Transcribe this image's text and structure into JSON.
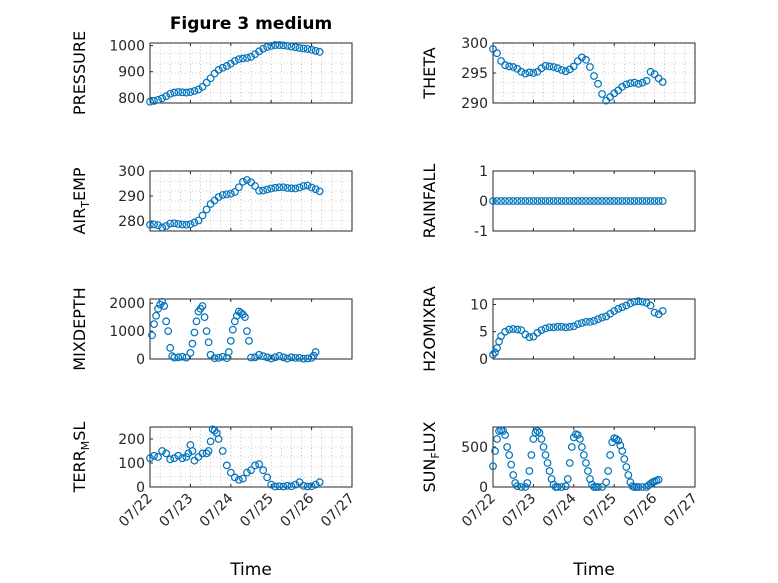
{
  "figure": {
    "title": "Figure 3 medium",
    "xlabel": "Time",
    "marker_color": "#0072BD",
    "x_ticks": [
      "07/22",
      "07/23",
      "07/24",
      "07/25",
      "07/26",
      "07/27"
    ]
  },
  "chart_data": [
    {
      "type": "scatter",
      "ylabel": "PRESSURE",
      "ylim": [
        780,
        1010
      ],
      "yticks": [
        800,
        900,
        1000
      ],
      "grid": true,
      "x": [
        22.0,
        22.1,
        22.2,
        22.3,
        22.4,
        22.5,
        22.6,
        22.7,
        22.8,
        22.9,
        23.0,
        23.1,
        23.2,
        23.3,
        23.4,
        23.5,
        23.6,
        23.7,
        23.8,
        23.9,
        24.0,
        24.1,
        24.2,
        24.3,
        24.4,
        24.5,
        24.6,
        24.7,
        24.8,
        24.9,
        25.0,
        25.1,
        25.2,
        25.3,
        25.4,
        25.5,
        25.6,
        25.7,
        25.8,
        25.9,
        26.0,
        26.1,
        26.2
      ],
      "y": [
        785,
        788,
        792,
        798,
        806,
        815,
        820,
        822,
        821,
        820,
        822,
        826,
        832,
        842,
        858,
        875,
        893,
        907,
        915,
        922,
        931,
        941,
        948,
        951,
        953,
        957,
        967,
        978,
        988,
        995,
        999,
        1002,
        1002,
        1001,
        999,
        996,
        994,
        991,
        989,
        987,
        984,
        980,
        976
      ]
    },
    {
      "type": "scatter",
      "ylabel": "THETA",
      "ylim": [
        290,
        300
      ],
      "yticks": [
        290,
        295,
        300
      ],
      "grid": true,
      "x": [
        22.0,
        22.1,
        22.2,
        22.3,
        22.4,
        22.5,
        22.6,
        22.7,
        22.8,
        22.9,
        23.0,
        23.1,
        23.2,
        23.3,
        23.4,
        23.5,
        23.6,
        23.7,
        23.8,
        23.9,
        24.0,
        24.1,
        24.2,
        24.3,
        24.4,
        24.5,
        24.6,
        24.7,
        24.8,
        24.9,
        25.0,
        25.1,
        25.2,
        25.3,
        25.4,
        25.5,
        25.6,
        25.7,
        25.8,
        25.9,
        26.0,
        26.1,
        26.2
      ],
      "y": [
        299.0,
        298.3,
        297.0,
        296.3,
        296.1,
        296.0,
        295.7,
        295.2,
        294.9,
        295.1,
        295.0,
        295.2,
        295.8,
        296.2,
        296.1,
        296.0,
        295.8,
        295.5,
        295.3,
        295.6,
        296.1,
        297.0,
        297.6,
        297.2,
        296.0,
        294.5,
        293.2,
        291.5,
        290.4,
        291.0,
        291.6,
        292.1,
        292.7,
        293.1,
        293.3,
        293.4,
        293.2,
        293.4,
        293.7,
        295.2,
        294.8,
        294.1,
        293.5
      ]
    },
    {
      "type": "scatter",
      "ylabel": "AIR_TEMP",
      "ylim": [
        276,
        300
      ],
      "yticks": [
        280,
        290,
        300
      ],
      "grid": true,
      "x": [
        22.0,
        22.1,
        22.2,
        22.3,
        22.4,
        22.5,
        22.6,
        22.7,
        22.8,
        22.9,
        23.0,
        23.1,
        23.2,
        23.3,
        23.4,
        23.5,
        23.6,
        23.7,
        23.8,
        23.9,
        24.0,
        24.1,
        24.2,
        24.3,
        24.4,
        24.5,
        24.6,
        24.7,
        24.8,
        24.9,
        25.0,
        25.1,
        25.2,
        25.3,
        25.4,
        25.5,
        25.6,
        25.7,
        25.8,
        25.9,
        26.0,
        26.1,
        26.2
      ],
      "y": [
        278.5,
        278.6,
        278.3,
        277.4,
        278.0,
        279.0,
        279.1,
        278.8,
        278.6,
        278.5,
        278.7,
        279.4,
        280.2,
        282.2,
        284.6,
        286.8,
        288.2,
        289.6,
        290.4,
        290.7,
        290.9,
        291.6,
        293.5,
        295.7,
        296.4,
        295.5,
        294.0,
        292.1,
        292.2,
        292.6,
        293.0,
        293.3,
        293.5,
        293.5,
        293.2,
        293.1,
        293.0,
        293.4,
        294.0,
        294.2,
        293.4,
        292.7,
        291.9
      ]
    },
    {
      "type": "scatter",
      "ylabel": "RAINFALL",
      "ylim": [
        -1,
        1
      ],
      "yticks": [
        -1,
        0,
        1
      ],
      "grid": false,
      "x": [
        22.0,
        22.1,
        22.2,
        22.3,
        22.4,
        22.5,
        22.6,
        22.7,
        22.8,
        22.9,
        23.0,
        23.1,
        23.2,
        23.3,
        23.4,
        23.5,
        23.6,
        23.7,
        23.8,
        23.9,
        24.0,
        24.1,
        24.2,
        24.3,
        24.4,
        24.5,
        24.6,
        24.7,
        24.8,
        24.9,
        25.0,
        25.1,
        25.2,
        25.3,
        25.4,
        25.5,
        25.6,
        25.7,
        25.8,
        25.9,
        26.0,
        26.1,
        26.2
      ],
      "y": [
        0,
        0,
        0,
        0,
        0,
        0,
        0,
        0,
        0,
        0,
        0,
        0,
        0,
        0,
        0,
        0,
        0,
        0,
        0,
        0,
        0,
        0,
        0,
        0,
        0,
        0,
        0,
        0,
        0,
        0,
        0,
        0,
        0,
        0,
        0,
        0,
        0,
        0,
        0,
        0,
        0,
        0,
        0
      ]
    },
    {
      "type": "scatter",
      "ylabel": "MIXDEPTH",
      "ylim": [
        0,
        2150
      ],
      "yticks": [
        0,
        1000,
        2000
      ],
      "grid": false,
      "x": [
        22.05,
        22.1,
        22.15,
        22.2,
        22.25,
        22.3,
        22.35,
        22.4,
        22.45,
        22.5,
        22.55,
        22.6,
        22.7,
        22.8,
        22.9,
        23.0,
        23.05,
        23.1,
        23.15,
        23.2,
        23.25,
        23.3,
        23.35,
        23.4,
        23.45,
        23.5,
        23.6,
        23.7,
        23.8,
        23.9,
        23.95,
        24.0,
        24.05,
        24.1,
        24.15,
        24.2,
        24.25,
        24.3,
        24.35,
        24.4,
        24.45,
        24.5,
        24.6,
        24.7,
        24.8,
        24.9,
        25.0,
        25.1,
        25.2,
        25.3,
        25.4,
        25.5,
        25.6,
        25.7,
        25.8,
        25.9,
        26.0,
        26.05,
        26.1
      ],
      "y": [
        850,
        1250,
        1550,
        1800,
        1950,
        2050,
        1900,
        1350,
        1000,
        400,
        100,
        50,
        60,
        80,
        50,
        220,
        550,
        950,
        1350,
        1700,
        1800,
        1900,
        1500,
        1000,
        600,
        150,
        30,
        40,
        80,
        30,
        250,
        650,
        1050,
        1350,
        1550,
        1700,
        1650,
        1600,
        1500,
        1000,
        650,
        50,
        60,
        150,
        100,
        60,
        20,
        60,
        110,
        60,
        20,
        60,
        40,
        40,
        10,
        20,
        40,
        120,
        250
      ]
    },
    {
      "type": "scatter",
      "ylabel": "H2OMIXRA",
      "ylim": [
        0,
        11
      ],
      "yticks": [
        0,
        5,
        10
      ],
      "grid": false,
      "x": [
        22.0,
        22.05,
        22.1,
        22.15,
        22.2,
        22.3,
        22.4,
        22.5,
        22.6,
        22.7,
        22.8,
        22.9,
        23.0,
        23.1,
        23.2,
        23.3,
        23.4,
        23.5,
        23.6,
        23.7,
        23.8,
        23.9,
        24.0,
        24.1,
        24.2,
        24.3,
        24.4,
        24.5,
        24.6,
        24.7,
        24.8,
        24.9,
        25.0,
        25.1,
        25.2,
        25.3,
        25.4,
        25.5,
        25.6,
        25.7,
        25.8,
        25.9,
        26.0,
        26.1,
        26.2
      ],
      "y": [
        0.8,
        1.2,
        2.0,
        3.2,
        4.2,
        5.0,
        5.4,
        5.5,
        5.4,
        5.3,
        4.5,
        4.0,
        4.1,
        4.8,
        5.3,
        5.6,
        5.8,
        5.8,
        5.9,
        5.9,
        5.8,
        5.9,
        6.0,
        6.4,
        6.6,
        6.8,
        6.8,
        7.0,
        7.3,
        7.6,
        7.8,
        8.3,
        8.8,
        9.2,
        9.5,
        9.8,
        10.2,
        10.5,
        10.6,
        10.5,
        10.3,
        9.8,
        8.5,
        8.2,
        8.8
      ]
    },
    {
      "type": "scatter",
      "ylabel": "TERR_MSL",
      "ylim": [
        0,
        250
      ],
      "yticks": [
        0,
        100,
        200
      ],
      "grid": true,
      "x": [
        22.0,
        22.1,
        22.2,
        22.3,
        22.4,
        22.5,
        22.6,
        22.7,
        22.8,
        22.9,
        22.95,
        23.0,
        23.05,
        23.1,
        23.2,
        23.3,
        23.4,
        23.45,
        23.5,
        23.55,
        23.6,
        23.65,
        23.7,
        23.8,
        23.9,
        24.0,
        24.1,
        24.2,
        24.3,
        24.4,
        24.5,
        24.6,
        24.7,
        24.8,
        24.9,
        25.0,
        25.1,
        25.2,
        25.3,
        25.4,
        25.5,
        25.6,
        25.7,
        25.8,
        25.9,
        26.0,
        26.1,
        26.2
      ],
      "y": [
        120,
        130,
        125,
        150,
        140,
        115,
        120,
        130,
        120,
        125,
        140,
        175,
        150,
        110,
        125,
        140,
        140,
        150,
        190,
        240,
        235,
        225,
        200,
        150,
        90,
        60,
        40,
        30,
        35,
        60,
        70,
        90,
        95,
        70,
        40,
        10,
        2,
        3,
        2,
        5,
        3,
        10,
        20,
        5,
        2,
        3,
        10,
        20
      ]
    },
    {
      "type": "scatter",
      "ylabel": "SUN_FLUX",
      "ylim": [
        0,
        750
      ],
      "yticks": [
        0,
        500
      ],
      "grid": false,
      "x": [
        22.0,
        22.05,
        22.1,
        22.15,
        22.2,
        22.25,
        22.3,
        22.35,
        22.4,
        22.45,
        22.5,
        22.55,
        22.6,
        22.7,
        22.8,
        22.85,
        22.9,
        22.95,
        23.0,
        23.05,
        23.1,
        23.15,
        23.2,
        23.25,
        23.3,
        23.35,
        23.4,
        23.45,
        23.5,
        23.55,
        23.6,
        23.7,
        23.8,
        23.85,
        23.9,
        23.95,
        24.0,
        24.05,
        24.1,
        24.15,
        24.2,
        24.25,
        24.3,
        24.35,
        24.4,
        24.45,
        24.5,
        24.55,
        24.6,
        24.7,
        24.8,
        24.85,
        24.9,
        24.95,
        25.0,
        25.05,
        25.1,
        25.15,
        25.2,
        25.25,
        25.3,
        25.35,
        25.4,
        25.45,
        25.5,
        25.55,
        25.6,
        25.7,
        25.8,
        25.85,
        25.9,
        25.95,
        26.0,
        26.05,
        26.1
      ],
      "y": [
        260,
        450,
        600,
        700,
        710,
        700,
        650,
        500,
        400,
        280,
        150,
        50,
        10,
        0,
        0,
        50,
        200,
        400,
        600,
        680,
        700,
        680,
        600,
        500,
        400,
        300,
        200,
        100,
        30,
        0,
        0,
        0,
        10,
        100,
        300,
        500,
        620,
        660,
        650,
        600,
        500,
        400,
        300,
        200,
        100,
        30,
        0,
        0,
        0,
        0,
        60,
        200,
        400,
        560,
        610,
        600,
        580,
        520,
        450,
        350,
        250,
        150,
        60,
        10,
        0,
        0,
        0,
        0,
        0,
        20,
        40,
        60,
        70,
        80,
        90
      ]
    }
  ]
}
